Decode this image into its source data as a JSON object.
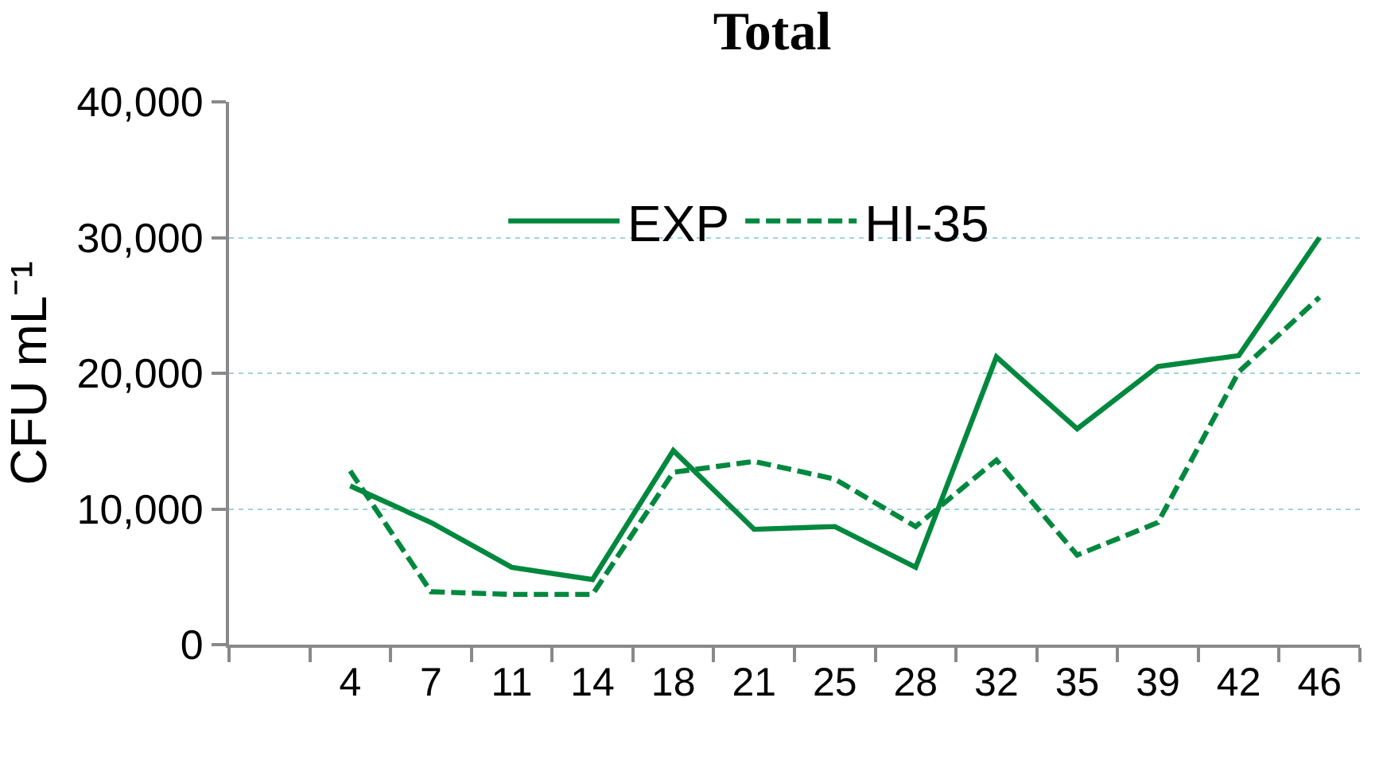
{
  "chart_data": {
    "type": "line",
    "title": "Total",
    "ylabel": "CFU mL⁻¹",
    "categories": [
      null,
      "4",
      "7",
      "11",
      "14",
      "18",
      "21",
      "25",
      "28",
      "32",
      "35",
      "39",
      "42",
      "46"
    ],
    "series": [
      {
        "name": "EXP",
        "color": "#00883e",
        "line_style": "solid",
        "values": [
          null,
          11700,
          9000,
          5700,
          4800,
          14300,
          8500,
          8700,
          5700,
          21200,
          15900,
          20500,
          21300,
          30000
        ]
      },
      {
        "name": "HI-35",
        "color": "#00883e",
        "line_style": "dashed",
        "values": [
          null,
          12800,
          3900,
          3700,
          3700,
          12700,
          13500,
          12200,
          8700,
          13600,
          6600,
          9000,
          20100,
          25600
        ]
      }
    ],
    "ylim": [
      0,
      40000
    ],
    "yticks": [
      0,
      {
        "value": 10000,
        "label": "10,000"
      },
      {
        "value": 20000,
        "label": "20,000"
      },
      {
        "value": 30000,
        "label": "30,000"
      },
      {
        "value": 40000,
        "label": "40,000"
      }
    ],
    "grid": "y",
    "legend": "top"
  }
}
